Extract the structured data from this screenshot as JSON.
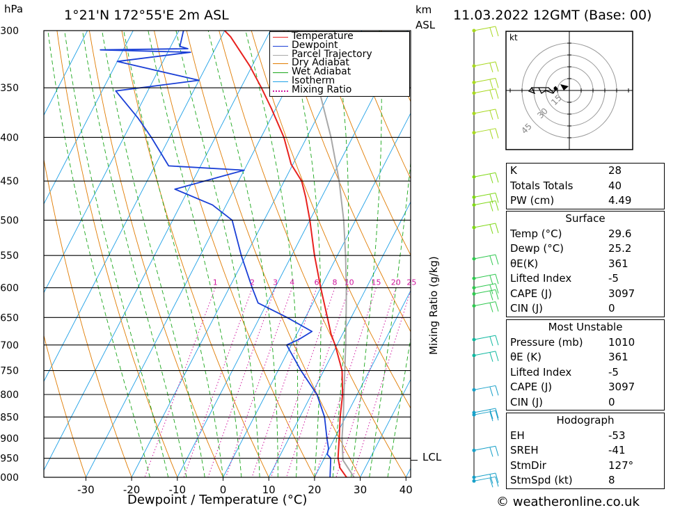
{
  "header": {
    "pressure_unit": "hPa",
    "location": "1°21'N  172°55'E  2m  ASL",
    "height_unit_top": "km",
    "height_unit_bottom": "ASL",
    "datetime": "11.03.2022  12GMT  (Base: 00)"
  },
  "footer": {
    "copyright": "© weatheronline.co.uk"
  },
  "legend": {
    "items": [
      {
        "label": "Temperature",
        "color": "#e8211e",
        "style": "solid"
      },
      {
        "label": "Dewpoint",
        "color": "#1a3fd6",
        "style": "solid"
      },
      {
        "label": "Parcel Trajectory",
        "color": "#a8a8a8",
        "style": "solid"
      },
      {
        "label": "Dry Adiabat",
        "color": "#e07b00",
        "style": "solid"
      },
      {
        "label": "Wet Adiabat",
        "color": "#1aa61a",
        "style": "solid"
      },
      {
        "label": "Isotherm",
        "color": "#1ea0e6",
        "style": "solid"
      },
      {
        "label": "Mixing Ratio",
        "color": "#d0149e",
        "style": "dotted"
      }
    ]
  },
  "chart_data": {
    "type": "line",
    "title": "",
    "xlabel": "Dewpoint / Temperature (°C)",
    "ylabel": "hPa",
    "mixing_ratio_label": "Mixing Ratio (g/kg)",
    "lcl_label": "LCL",
    "lcl_pressure": 955,
    "xlim": [
      -40,
      40
    ],
    "x_ticks": [
      -30,
      -20,
      -10,
      0,
      10,
      20,
      30,
      40
    ],
    "pressure_levels": [
      300,
      350,
      400,
      450,
      500,
      550,
      600,
      650,
      700,
      750,
      800,
      850,
      900,
      950,
      1000
    ],
    "mixing_ratio_values": [
      1,
      2,
      3,
      4,
      6,
      8,
      10,
      15,
      20,
      25
    ],
    "grid": true,
    "legend_position": "top-right",
    "series": [
      {
        "name": "Temperature",
        "points": [
          {
            "p": 1010,
            "t": 29.6
          },
          {
            "p": 1000,
            "t": 27
          },
          {
            "p": 975,
            "t": 24.5
          },
          {
            "p": 950,
            "t": 23
          },
          {
            "p": 925,
            "t": 22
          },
          {
            "p": 900,
            "t": 21
          },
          {
            "p": 850,
            "t": 18.8
          },
          {
            "p": 800,
            "t": 16.8
          },
          {
            "p": 750,
            "t": 14
          },
          {
            "p": 700,
            "t": 9.6
          },
          {
            "p": 680,
            "t": 7.5
          },
          {
            "p": 650,
            "t": 4.8
          },
          {
            "p": 600,
            "t": 0
          },
          {
            "p": 550,
            "t": -5
          },
          {
            "p": 500,
            "t": -10
          },
          {
            "p": 470,
            "t": -13.5
          },
          {
            "p": 450,
            "t": -16.2
          },
          {
            "p": 430,
            "t": -20.4
          },
          {
            "p": 400,
            "t": -25
          },
          {
            "p": 370,
            "t": -31
          },
          {
            "p": 350,
            "t": -35.5
          },
          {
            "p": 330,
            "t": -40.5
          },
          {
            "p": 305,
            "t": -48
          },
          {
            "p": 300,
            "t": -50
          }
        ]
      },
      {
        "name": "Dewpoint",
        "points": [
          {
            "p": 1010,
            "t": 25.2
          },
          {
            "p": 1000,
            "t": 23.4
          },
          {
            "p": 950,
            "t": 21.4
          },
          {
            "p": 940,
            "t": 20.2
          },
          {
            "p": 925,
            "t": 19.8
          },
          {
            "p": 900,
            "t": 18.3
          },
          {
            "p": 850,
            "t": 15.4
          },
          {
            "p": 800,
            "t": 11.2
          },
          {
            "p": 750,
            "t": 5
          },
          {
            "p": 700,
            "t": -1
          },
          {
            "p": 690,
            "t": 1
          },
          {
            "p": 675,
            "t": 3
          },
          {
            "p": 650,
            "t": -4
          },
          {
            "p": 625,
            "t": -12
          },
          {
            "p": 600,
            "t": -15
          },
          {
            "p": 550,
            "t": -21
          },
          {
            "p": 500,
            "t": -27
          },
          {
            "p": 480,
            "t": -33
          },
          {
            "p": 460,
            "t": -43
          },
          {
            "p": 437,
            "t": -30
          },
          {
            "p": 432,
            "t": -47
          },
          {
            "p": 400,
            "t": -54
          },
          {
            "p": 380,
            "t": -59
          },
          {
            "p": 353,
            "t": -67
          },
          {
            "p": 343,
            "t": -50
          },
          {
            "p": 326,
            "t": -70
          },
          {
            "p": 318,
            "t": -55
          },
          {
            "p": 316,
            "t": -75
          },
          {
            "p": 315,
            "t": -56
          },
          {
            "p": 313,
            "t": -58
          },
          {
            "p": 300,
            "t": -59
          }
        ]
      },
      {
        "name": "Parcel Trajectory",
        "points": [
          {
            "p": 1010,
            "t": 29.6
          },
          {
            "p": 955,
            "t": 24.3
          },
          {
            "p": 900,
            "t": 21.6
          },
          {
            "p": 850,
            "t": 19.5
          },
          {
            "p": 800,
            "t": 17.1
          },
          {
            "p": 750,
            "t": 14.6
          },
          {
            "p": 700,
            "t": 11.9
          },
          {
            "p": 650,
            "t": 8.9
          },
          {
            "p": 600,
            "t": 5.6
          },
          {
            "p": 550,
            "t": 1.8
          },
          {
            "p": 500,
            "t": -2.6
          },
          {
            "p": 450,
            "t": -8.0
          },
          {
            "p": 400,
            "t": -14.7
          },
          {
            "p": 350,
            "t": -23
          },
          {
            "p": 300,
            "t": -34
          }
        ]
      }
    ]
  },
  "hodograph": {
    "unit_label": "kt",
    "ring_labels": [
      "15",
      "30",
      "45"
    ]
  },
  "indices_general": [
    {
      "label": "K",
      "value": "28"
    },
    {
      "label": "Totals Totals",
      "value": "40"
    },
    {
      "label": "PW (cm)",
      "value": "4.49"
    }
  ],
  "surface": {
    "title": "Surface",
    "rows": [
      {
        "label": "Temp (°C)",
        "value": "29.6"
      },
      {
        "label": "Dewp (°C)",
        "value": "25.2"
      },
      {
        "label": "θE(K)",
        "value": "361"
      },
      {
        "label": "Lifted Index",
        "value": "-5"
      },
      {
        "label": "CAPE (J)",
        "value": "3097"
      },
      {
        "label": "CIN (J)",
        "value": "0"
      }
    ]
  },
  "most_unstable": {
    "title": "Most Unstable",
    "rows": [
      {
        "label": "Pressure (mb)",
        "value": "1010"
      },
      {
        "label": "θE (K)",
        "value": "361"
      },
      {
        "label": "Lifted Index",
        "value": "-5"
      },
      {
        "label": "CAPE (J)",
        "value": "3097"
      },
      {
        "label": "CIN (J)",
        "value": "0"
      }
    ]
  },
  "hodograph_stats": {
    "title": "Hodograph",
    "rows": [
      {
        "label": "EH",
        "value": "-53"
      },
      {
        "label": "SREH",
        "value": "-41"
      },
      {
        "label": "StmDir",
        "value": "127°"
      },
      {
        "label": "StmSpd (kt)",
        "value": "8"
      }
    ]
  }
}
